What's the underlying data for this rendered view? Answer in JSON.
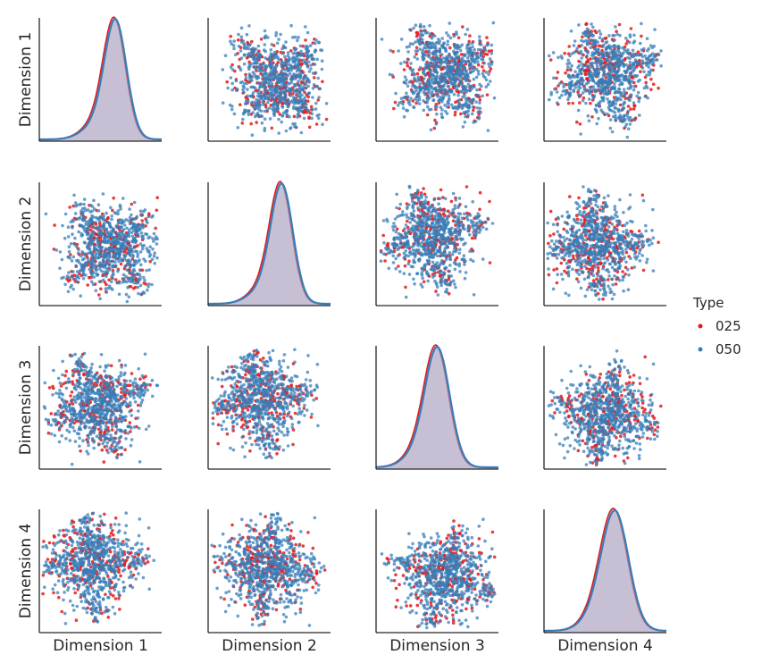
{
  "chart_data": {
    "type": "scatter",
    "subtype": "pairplot",
    "variables": [
      "Dimension 1",
      "Dimension 2",
      "Dimension 3",
      "Dimension 4"
    ],
    "diagonal": "kde",
    "off_diagonal": "scatter",
    "grid": false,
    "legend": {
      "title": "Type",
      "placement": "right",
      "entries": [
        {
          "name": "025",
          "color": "#e41a1c"
        },
        {
          "name": "050",
          "color": "#377eb8"
        }
      ]
    },
    "series": [
      {
        "name": "025",
        "color": "#e41a1c",
        "kde_fill": "#d8a7b4"
      },
      {
        "name": "050",
        "color": "#377eb8",
        "kde_fill": "#a9b4d6"
      }
    ],
    "kde_peak_positions": [
      0.62,
      0.6,
      0.5,
      0.58
    ],
    "kde_widths": [
      0.09,
      0.09,
      0.1,
      0.11
    ]
  }
}
